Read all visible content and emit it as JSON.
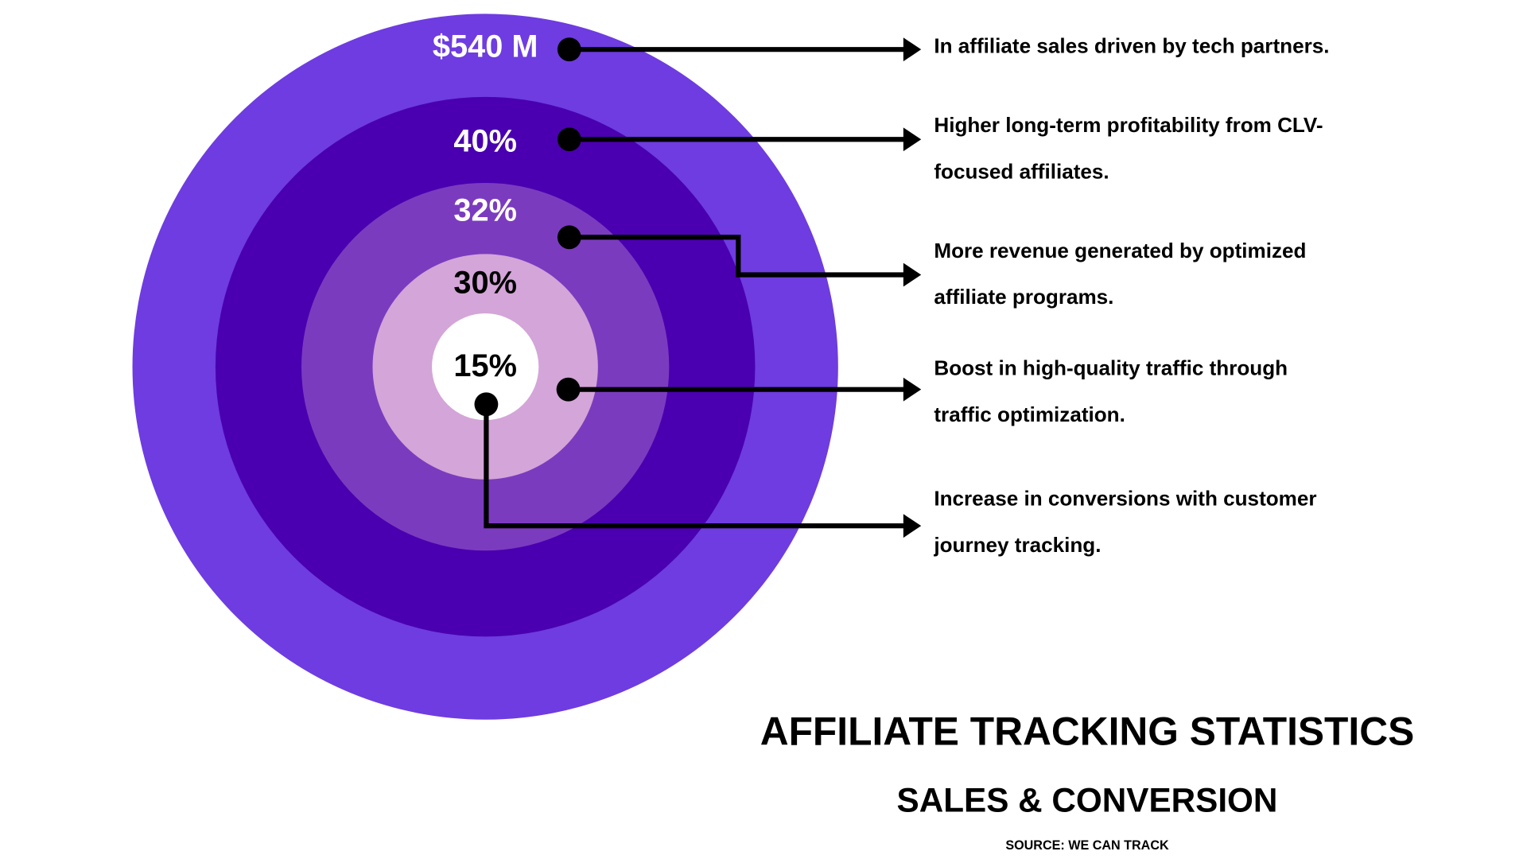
{
  "title": "AFFILIATE TRACKING STATISTICS",
  "subtitle": "SALES & CONVERSION",
  "source": "SOURCE: WE CAN TRACK",
  "stats": [
    {
      "value": "$540 M",
      "lines": [
        "In affiliate sales driven by tech partners."
      ]
    },
    {
      "value": "40%",
      "lines": [
        "Higher long-term profitability from CLV-",
        "focused affiliates."
      ]
    },
    {
      "value": "32%",
      "lines": [
        "More revenue generated by optimized",
        "affiliate programs."
      ]
    },
    {
      "value": "30%",
      "lines": [
        "Boost in high-quality traffic through",
        "traffic optimization."
      ]
    },
    {
      "value": "15%",
      "lines": [
        "Increase in conversions with customer",
        "journey tracking."
      ]
    }
  ]
}
